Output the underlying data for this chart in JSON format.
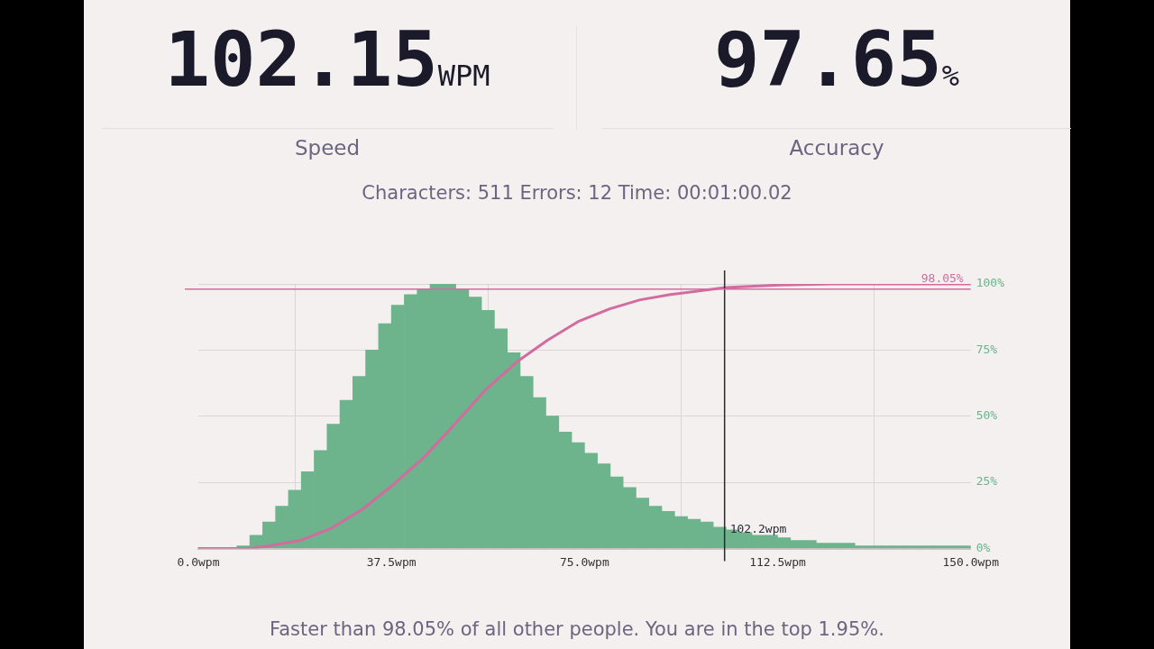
{
  "chart_data": {
    "type": "histogram",
    "annotations": [
      "102.15",
      "WPM",
      "Speed",
      "97.65",
      "%",
      "Accuracy",
      "Characters: 511  Errors: 12  Time: 00:01:00.02",
      "Faster than 98.05% of all other people. You are in the top 1.95%."
    ],
    "bins": [
      7.5,
      10,
      12.5,
      15,
      17.5,
      20,
      22.5,
      25,
      27.5,
      30,
      32.5,
      35,
      37.5,
      40,
      42.5,
      45,
      47.5,
      50,
      52.5,
      55,
      57.5,
      60,
      62.5,
      65,
      67.5,
      70,
      72.5,
      75,
      77.5,
      80,
      82.5,
      85,
      87.5,
      90,
      92.5,
      95,
      97.5,
      100,
      102.5,
      105,
      107.5,
      110,
      112.5,
      115,
      117.5,
      120,
      122.5,
      125,
      127.5,
      130,
      132.5,
      135,
      137.5,
      140,
      142.5,
      145,
      147.5,
      150
    ],
    "series": [
      {
        "type": "histogram",
        "axis": "y2",
        "color": "#6db38c",
        "values": [
          1,
          5,
          10,
          16,
          22,
          29,
          37,
          47,
          56,
          65,
          75,
          85,
          92,
          96,
          98,
          100,
          100,
          98,
          95,
          90,
          83,
          74,
          65,
          57,
          50,
          44,
          40,
          36,
          32,
          27,
          23,
          19,
          16,
          14,
          12,
          11,
          10,
          8,
          7,
          6,
          5,
          5,
          4,
          3,
          3,
          2,
          2,
          2,
          1,
          1,
          1,
          1,
          1,
          1,
          1,
          1,
          1
        ]
      },
      {
        "type": "line",
        "axis": "y2",
        "color": "#d26b9e",
        "x": [
          0,
          10,
          13.8,
          19.8,
          25.9,
          31.8,
          37.8,
          43.9,
          49.8,
          55.8,
          61.9,
          67.8,
          73.7,
          79.9,
          85.8,
          91.7,
          102.3,
          112.8,
          123,
          150
        ],
        "values": [
          0,
          0,
          1,
          3,
          7.7,
          14.7,
          24,
          34.6,
          47,
          60,
          70.6,
          78.7,
          85.7,
          90.6,
          94,
          96,
          98.6,
          99.6,
          100,
          100
        ]
      }
    ],
    "xlim": [
      0,
      150
    ],
    "xticks": [
      {
        "value": 0,
        "label": "0.0wpm"
      },
      {
        "value": 37.5,
        "label": "37.5wpm"
      },
      {
        "value": 75,
        "label": "75.0wpm"
      },
      {
        "value": 112.5,
        "label": "112.5wpm"
      },
      {
        "value": 150,
        "label": "150.0wpm"
      }
    ],
    "y2lim": [
      0,
      100
    ],
    "y2ticks": [
      {
        "value": 0,
        "label": "0%"
      },
      {
        "value": 25,
        "label": "25%"
      },
      {
        "value": 50,
        "label": "50%"
      },
      {
        "value": 75,
        "label": "75%"
      },
      {
        "value": 100,
        "label": "100%"
      }
    ],
    "ref_lines": [
      {
        "axis": "x",
        "value": 102.2,
        "label": "102.2wpm",
        "color": "#2a2a3a"
      },
      {
        "axis": "y2",
        "value": 98.05,
        "label": "98.05%",
        "color": "#d26b9e"
      }
    ],
    "grid": true,
    "legend": false,
    "marker": "none",
    "line_style": "solid"
  }
}
